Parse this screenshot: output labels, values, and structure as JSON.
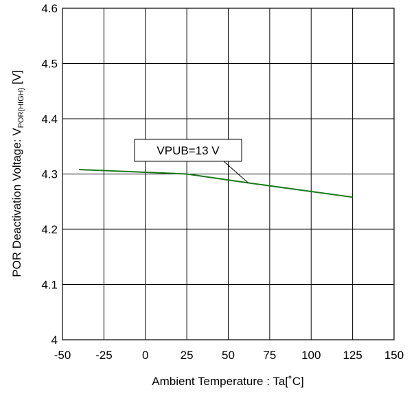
{
  "chart_data": {
    "type": "line",
    "title": "",
    "xlabel": "Ambient Temperature : Ta[˚C]",
    "ylabel": {
      "prefix": "POR Deactivation Voltage: V",
      "subscript": "POR(HIGH)",
      "suffix": " [V]"
    },
    "xlim": [
      -50,
      150
    ],
    "ylim": [
      4.0,
      4.6
    ],
    "xticks": [
      "-50",
      "-25",
      "0",
      "25",
      "50",
      "75",
      "100",
      "125",
      "150"
    ],
    "yticks": [
      "4",
      "4.1",
      "4.2",
      "4.3",
      "4.4",
      "4.5",
      "4.6"
    ],
    "grid": true,
    "series": [
      {
        "name": "VPUB=13 V",
        "color": "#1a7a1a",
        "x": [
          -40,
          25,
          62,
          125
        ],
        "y": [
          4.308,
          4.3,
          4.284,
          4.258
        ]
      }
    ],
    "annotations": [
      {
        "text": "VPUB=13 V",
        "target_x": 62,
        "target_y": 4.284
      }
    ]
  }
}
